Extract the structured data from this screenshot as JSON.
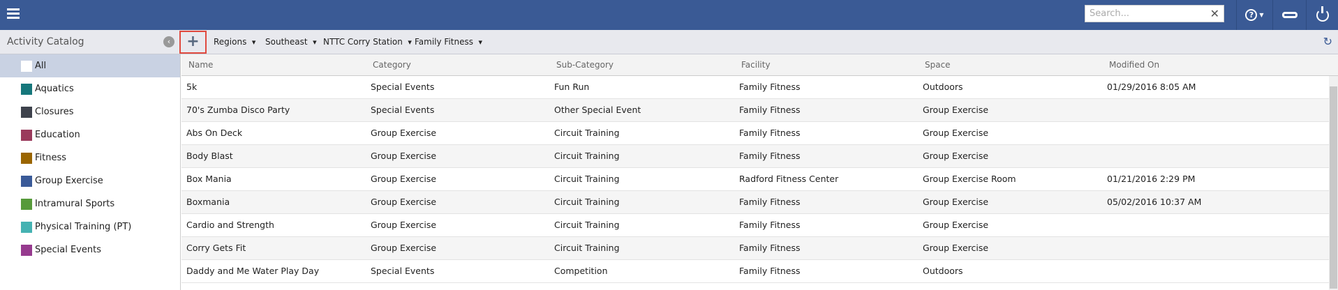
{
  "header": {
    "search_placeholder": "Search...",
    "clear": "✕",
    "help": "?",
    "icons": [
      "menu-icon",
      "help-icon",
      "phone-icon",
      "power-icon"
    ]
  },
  "toolbar": {
    "sidebar_title": "Activity Catalog",
    "add": "+",
    "filters": [
      "Regions",
      "Southeast",
      "NTTC Corry Station",
      "Family Fitness"
    ]
  },
  "sidebar": {
    "items": [
      {
        "label": "All",
        "color": "#ffffff",
        "selected": true
      },
      {
        "label": "Aquatics",
        "color": "#16777b"
      },
      {
        "label": "Closures",
        "color": "#3e424c"
      },
      {
        "label": "Education",
        "color": "#9a3a5c"
      },
      {
        "label": "Fitness",
        "color": "#9a6500"
      },
      {
        "label": "Group Exercise",
        "color": "#3a5a98"
      },
      {
        "label": "Intramural Sports",
        "color": "#579a3a"
      },
      {
        "label": "Physical Training (PT)",
        "color": "#45b2b2"
      },
      {
        "label": "Special Events",
        "color": "#963a8e"
      }
    ]
  },
  "table": {
    "columns": [
      "Name",
      "Category",
      "Sub-Category",
      "Facility",
      "Space",
      "Modified On"
    ],
    "rows": [
      [
        "5k",
        "Special Events",
        "Fun Run",
        "Family Fitness",
        "Outdoors",
        "01/29/2016 8:05 AM"
      ],
      [
        "70's Zumba Disco Party",
        "Special Events",
        "Other Special Event",
        "Family Fitness",
        "Group Exercise",
        ""
      ],
      [
        "Abs On Deck",
        "Group Exercise",
        "Circuit Training",
        "Family Fitness",
        "Group Exercise",
        ""
      ],
      [
        "Body Blast",
        "Group Exercise",
        "Circuit Training",
        "Family Fitness",
        "Group Exercise",
        ""
      ],
      [
        "Box Mania",
        "Group Exercise",
        "Circuit Training",
        "Radford Fitness Center",
        "Group Exercise Room",
        "01/21/2016 2:29 PM"
      ],
      [
        "Boxmania",
        "Group Exercise",
        "Circuit Training",
        "Family Fitness",
        "Group Exercise",
        "05/02/2016 10:37 AM"
      ],
      [
        "Cardio and Strength",
        "Group Exercise",
        "Circuit Training",
        "Family Fitness",
        "Group Exercise",
        ""
      ],
      [
        "Corry Gets Fit",
        "Group Exercise",
        "Circuit Training",
        "Family Fitness",
        "Group Exercise",
        ""
      ],
      [
        "Daddy and Me Water Play Day",
        "Special Events",
        "Competition",
        "Family Fitness",
        "Outdoors",
        ""
      ]
    ]
  }
}
